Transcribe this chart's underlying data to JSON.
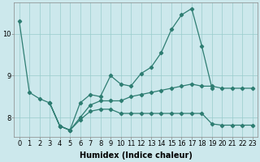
{
  "title": "",
  "xlabel": "Humidex (Indice chaleur)",
  "background_color": "#cce8ec",
  "grid_color": "#99cccc",
  "line_color": "#2e7d72",
  "ylim": [
    7.55,
    10.75
  ],
  "yticks": [
    8,
    9,
    10
  ],
  "xticks": [
    0,
    1,
    2,
    3,
    4,
    5,
    6,
    7,
    8,
    9,
    10,
    11,
    12,
    13,
    14,
    15,
    16,
    17,
    18,
    19,
    20,
    21,
    22,
    23
  ],
  "tick_fontsize": 6,
  "label_fontsize": 7,
  "series1_x": [
    0,
    1,
    2,
    3,
    4,
    5,
    6,
    7,
    8,
    9,
    10,
    11,
    12,
    13,
    14,
    15,
    16,
    17,
    18,
    19
  ],
  "series1_y": [
    10.3,
    8.6,
    8.45,
    8.35,
    7.8,
    7.7,
    8.35,
    8.55,
    8.5,
    9.0,
    8.8,
    8.75,
    9.05,
    9.2,
    9.55,
    10.1,
    10.45,
    10.6,
    9.7,
    8.7
  ],
  "series2_x": [
    3,
    4,
    5,
    6,
    7,
    8,
    9,
    10,
    11,
    12,
    13,
    14,
    15,
    16,
    17,
    18,
    19,
    20,
    21,
    22,
    23
  ],
  "series2_y": [
    8.35,
    7.8,
    7.7,
    8.0,
    8.3,
    8.4,
    8.4,
    8.4,
    8.5,
    8.55,
    8.6,
    8.65,
    8.7,
    8.75,
    8.8,
    8.75,
    8.75,
    8.7,
    8.7,
    8.7,
    8.7
  ],
  "series3_x": [
    3,
    4,
    5,
    6,
    7,
    8,
    9,
    10,
    11,
    12,
    13,
    14,
    15,
    16,
    17,
    18,
    19,
    20,
    21,
    22,
    23
  ],
  "series3_y": [
    8.35,
    7.8,
    7.7,
    7.95,
    8.15,
    8.2,
    8.2,
    8.1,
    8.1,
    8.1,
    8.1,
    8.1,
    8.1,
    8.1,
    8.1,
    8.1,
    7.85,
    7.82,
    7.82,
    7.82,
    7.82
  ]
}
